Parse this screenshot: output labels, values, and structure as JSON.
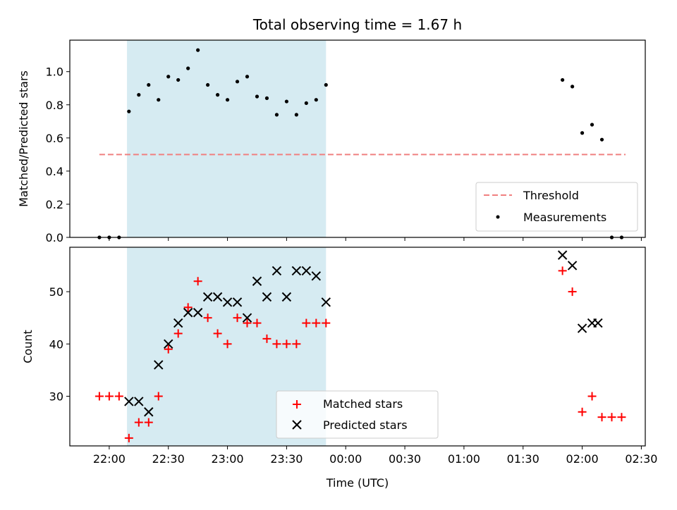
{
  "chart_data": [
    {
      "type": "scatter",
      "title": "Total observing time = 1.67 h",
      "ylabel": "Matched/Predicted stars",
      "xlabel": "",
      "ylim": [
        0,
        1.19
      ],
      "yticks": [
        "0.0",
        "0.2",
        "0.4",
        "0.6",
        "0.8",
        "1.0"
      ],
      "ytick_values": [
        0,
        0.2,
        0.4,
        0.6,
        0.8,
        1.0
      ],
      "shaded_span": [
        "22:09",
        "23:50"
      ],
      "shaded_color": "#add8e6",
      "threshold": {
        "name": "Threshold",
        "value": 0.5,
        "x_range": [
          "21:55",
          "02:22"
        ],
        "color": "#f08080"
      },
      "series": [
        {
          "name": "Measurements",
          "color": "#000000",
          "marker": "dot",
          "x": [
            "21:55",
            "22:00",
            "22:05",
            "22:10",
            "22:15",
            "22:20",
            "22:25",
            "22:30",
            "22:35",
            "22:40",
            "22:45",
            "22:50",
            "22:55",
            "23:00",
            "23:05",
            "23:10",
            "23:15",
            "23:20",
            "23:25",
            "23:30",
            "23:35",
            "23:40",
            "23:45",
            "23:50",
            "01:50",
            "01:55",
            "02:00",
            "02:05",
            "02:10",
            "02:15",
            "02:20"
          ],
          "y": [
            0,
            0,
            0,
            0.76,
            0.86,
            0.92,
            0.83,
            0.97,
            0.95,
            1.02,
            1.13,
            0.92,
            0.86,
            0.83,
            0.94,
            0.97,
            0.85,
            0.84,
            0.74,
            0.82,
            0.74,
            0.81,
            0.83,
            0.92,
            0.95,
            0.91,
            0.63,
            0.68,
            0.59,
            0,
            0
          ]
        }
      ],
      "legend": {
        "placement": "lower-right",
        "entries": [
          "Threshold",
          "Measurements"
        ]
      }
    },
    {
      "type": "scatter",
      "title": "",
      "ylabel": "Count",
      "xlabel": "Time (UTC)",
      "ylim": [
        20.5,
        58.5
      ],
      "yticks": [
        "30",
        "40",
        "50"
      ],
      "ytick_values": [
        30,
        40,
        50
      ],
      "xlim": [
        "21:40",
        "02:32"
      ],
      "xticks": [
        "22:00",
        "22:30",
        "23:00",
        "23:30",
        "00:00",
        "00:30",
        "01:00",
        "01:30",
        "02:00",
        "02:30"
      ],
      "shaded_span": [
        "22:09",
        "23:50"
      ],
      "shaded_color": "#add8e6",
      "series": [
        {
          "name": "Matched stars",
          "color": "#ff0000",
          "marker": "plus",
          "x": [
            "21:55",
            "22:00",
            "22:05",
            "22:10",
            "22:15",
            "22:20",
            "22:25",
            "22:30",
            "22:35",
            "22:40",
            "22:45",
            "22:50",
            "22:55",
            "23:00",
            "23:05",
            "23:10",
            "23:15",
            "23:20",
            "23:25",
            "23:30",
            "23:35",
            "23:40",
            "23:45",
            "23:50",
            "01:50",
            "01:55",
            "02:00",
            "02:05",
            "02:10",
            "02:15",
            "02:20"
          ],
          "y": [
            30,
            30,
            30,
            22,
            25,
            25,
            30,
            39,
            42,
            47,
            52,
            45,
            42,
            40,
            45,
            44,
            44,
            41,
            40,
            40,
            40,
            44,
            44,
            44,
            54,
            50,
            27,
            30,
            26,
            26,
            26
          ]
        },
        {
          "name": "Predicted stars",
          "color": "#000000",
          "marker": "x",
          "x": [
            "22:10",
            "22:15",
            "22:20",
            "22:25",
            "22:30",
            "22:35",
            "22:40",
            "22:45",
            "22:50",
            "22:55",
            "23:00",
            "23:05",
            "23:10",
            "23:15",
            "23:20",
            "23:25",
            "23:30",
            "23:35",
            "23:40",
            "23:45",
            "23:50",
            "01:50",
            "01:55",
            "02:00",
            "02:05",
            "02:08"
          ],
          "y": [
            29,
            29,
            27,
            36,
            40,
            44,
            46,
            46,
            49,
            49,
            48,
            48,
            45,
            52,
            49,
            54,
            49,
            54,
            54,
            53,
            48,
            57,
            55,
            43,
            44,
            44
          ]
        }
      ],
      "legend": {
        "placement": "lower-center",
        "entries": [
          "Matched stars",
          "Predicted stars"
        ]
      }
    }
  ]
}
